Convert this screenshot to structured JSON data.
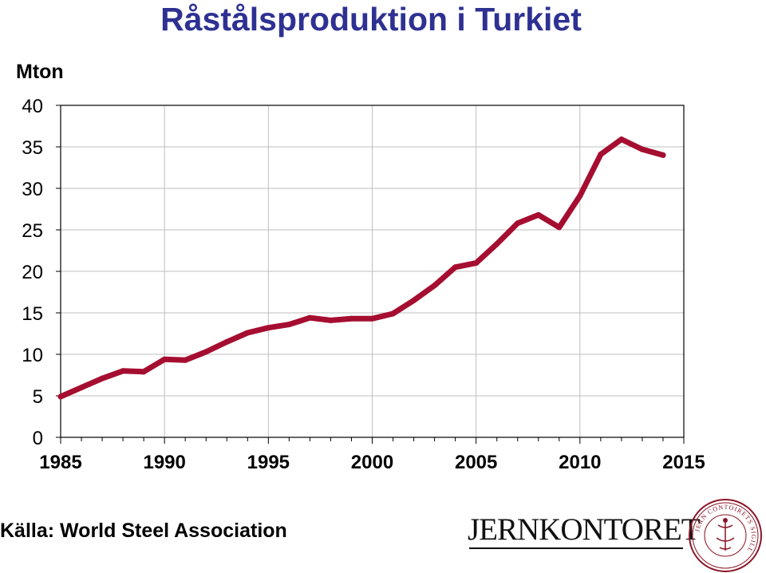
{
  "title": "Råstålsproduktion i Turkiet",
  "source": "Källa: World Steel Association",
  "logo": {
    "text": "JERNKONTORET",
    "seal_text": "JERN CONTOIRETS SIGILL"
  },
  "colors": {
    "title": "#2e3192",
    "line": "#a50e30",
    "grid": "#bfbfbf"
  },
  "chart_data": {
    "type": "line",
    "title": "Råstålsproduktion i Turkiet",
    "ylabel": "Mton",
    "xlabel": "",
    "xlim": [
      1985,
      2015
    ],
    "ylim": [
      0,
      40
    ],
    "xticks": [
      1985,
      1990,
      1995,
      2000,
      2005,
      2010,
      2015
    ],
    "yticks": [
      0,
      5,
      10,
      15,
      20,
      25,
      30,
      35,
      40
    ],
    "grid": true,
    "series": [
      {
        "x": [
          1985,
          1986,
          1987,
          1988,
          1989,
          1990,
          1991,
          1992,
          1993,
          1994,
          1995,
          1996,
          1997,
          1998,
          1999,
          2000,
          2001,
          2002,
          2003,
          2004,
          2005,
          2006,
          2007,
          2008,
          2009,
          2010,
          2011,
          2012,
          2013,
          2014
        ],
        "values": [
          4.9,
          6.0,
          7.1,
          8.0,
          7.9,
          9.4,
          9.3,
          10.3,
          11.5,
          12.6,
          13.2,
          13.6,
          14.4,
          14.1,
          14.3,
          14.3,
          14.9,
          16.5,
          18.3,
          20.5,
          21.0,
          23.3,
          25.8,
          26.8,
          25.3,
          29.1,
          34.1,
          35.9,
          34.7,
          34.0
        ]
      }
    ]
  }
}
